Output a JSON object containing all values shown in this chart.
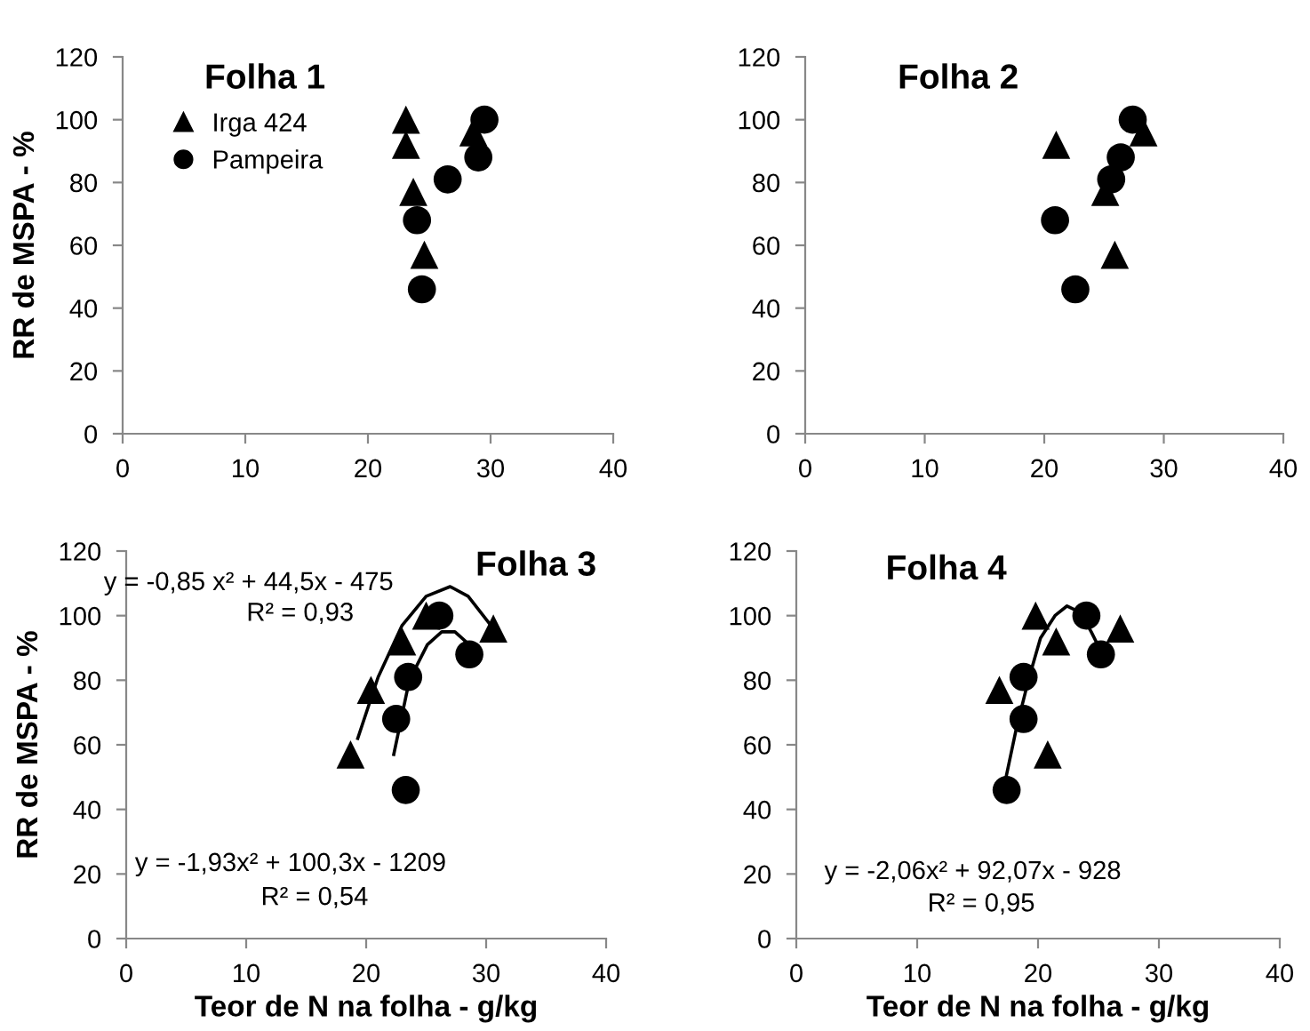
{
  "chart_data": [
    {
      "type": "scatter",
      "title": "Folha 1",
      "ylabel": "RR de MSPA - %",
      "xlim": [
        0,
        40
      ],
      "ylim": [
        0,
        120
      ],
      "xticks": [
        0,
        10,
        20,
        30,
        40
      ],
      "yticks": [
        0,
        20,
        40,
        60,
        80,
        100,
        120
      ],
      "grid": false,
      "legend": "top left",
      "series": [
        {
          "name": "Irga 424",
          "color": "#000000",
          "marker": "triangle",
          "x": [
            23.1,
            23.1,
            23.7,
            24.6,
            28.6
          ],
          "values": [
            100,
            92,
            77,
            57,
            96
          ]
        },
        {
          "name": "Pampeira",
          "color": "#000000",
          "marker": "circle",
          "x": [
            24.0,
            24.4,
            26.5,
            29.0,
            29.5
          ],
          "values": [
            68,
            46,
            81,
            88,
            100
          ]
        }
      ]
    },
    {
      "type": "scatter",
      "title": "Folha 2",
      "xlim": [
        0,
        40
      ],
      "ylim": [
        0,
        120
      ],
      "xticks": [
        0,
        10,
        20,
        30,
        40
      ],
      "yticks": [
        0,
        20,
        40,
        60,
        80,
        100,
        120
      ],
      "grid": false,
      "series": [
        {
          "color": "#000000",
          "marker": "triangle",
          "x": [
            21.0,
            25.1,
            25.9,
            28.3
          ],
          "values": [
            92,
            77,
            57,
            96
          ]
        },
        {
          "color": "#000000",
          "marker": "circle",
          "x": [
            20.9,
            22.6,
            25.6,
            26.4,
            27.4
          ],
          "values": [
            68,
            46,
            81,
            88,
            100
          ]
        }
      ]
    },
    {
      "type": "scatter",
      "title": "Folha 3",
      "xlabel": "Teor de N na folha - g/kg",
      "ylabel": "RR de MSPA - %",
      "xlim": [
        0,
        40
      ],
      "ylim": [
        0,
        120
      ],
      "xticks": [
        0,
        10,
        20,
        30,
        40
      ],
      "yticks": [
        0,
        20,
        40,
        60,
        80,
        100,
        120
      ],
      "grid": false,
      "annotations": [
        "y = -0,85 x² + 44,5x - 475",
        "R² = 0,93",
        "y = -1,93x² + 100,3x - 1209",
        "R² = 0,54"
      ],
      "series": [
        {
          "type": "line",
          "color": "#000000",
          "marker": "none",
          "x": [
            19.3,
            21,
            23,
            25,
            27,
            28.5,
            30.6
          ],
          "values": [
            62,
            81,
            97,
            106,
            109,
            106,
            96
          ]
        },
        {
          "type": "line",
          "color": "#000000",
          "marker": "none",
          "x": [
            22.3,
            23.6,
            25.1,
            26.3,
            27.4,
            28.6
          ],
          "values": [
            57,
            80,
            91,
            95,
            95,
            91
          ]
        },
        {
          "color": "#000000",
          "marker": "triangle",
          "x": [
            18.7,
            20.4,
            23.0,
            25.0,
            30.6
          ],
          "values": [
            57,
            77,
            92,
            100,
            96
          ]
        },
        {
          "color": "#000000",
          "marker": "circle",
          "x": [
            22.5,
            23.3,
            23.5,
            26.1,
            28.6
          ],
          "values": [
            68,
            46,
            81,
            100,
            88
          ]
        }
      ]
    },
    {
      "type": "scatter",
      "title": "Folha 4",
      "xlabel": "Teor de N na folha - g/kg",
      "xlim": [
        0,
        40
      ],
      "ylim": [
        0,
        120
      ],
      "xticks": [
        0,
        10,
        20,
        30,
        40
      ],
      "yticks": [
        0,
        20,
        40,
        60,
        80,
        100,
        120
      ],
      "grid": false,
      "annotations": [
        "y = -2,06x² + 92,07x - 928",
        "R² = 0,95"
      ],
      "series": [
        {
          "type": "line",
          "color": "#000000",
          "marker": "none",
          "x": [
            17.3,
            18.2,
            19.2,
            20.2,
            21.4,
            22.4,
            23.5,
            24.4,
            25.2
          ],
          "values": [
            49,
            65,
            80,
            93,
            100,
            103,
            101,
            95,
            89
          ]
        },
        {
          "color": "#000000",
          "marker": "triangle",
          "x": [
            16.8,
            19.8,
            21.5,
            20.8,
            26.8
          ],
          "values": [
            77,
            100,
            92,
            57,
            96
          ]
        },
        {
          "color": "#000000",
          "marker": "circle",
          "x": [
            17.4,
            18.8,
            18.8,
            24.0,
            25.2
          ],
          "values": [
            46,
            68,
            81,
            100,
            88
          ]
        }
      ]
    }
  ]
}
